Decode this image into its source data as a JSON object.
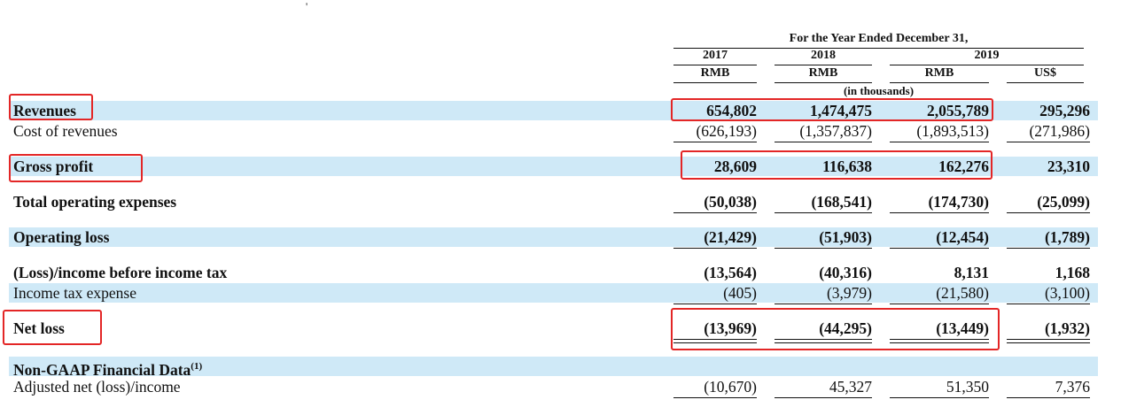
{
  "header": {
    "period": "For the Year Ended December 31,",
    "years": [
      "2017",
      "2018",
      "2019"
    ],
    "currencies": [
      "RMB",
      "RMB",
      "RMB",
      "US$"
    ],
    "unit": "(in thousands)"
  },
  "rows": {
    "revenues": {
      "label": "Revenues",
      "values": [
        "654,802",
        "1,474,475",
        "2,055,789",
        "295,296"
      ]
    },
    "cost": {
      "label": "Cost of revenues",
      "values": [
        "(626,193)",
        "(1,357,837)",
        "(1,893,513)",
        "(271,986)"
      ]
    },
    "gross": {
      "label": "Gross profit",
      "values": [
        "28,609",
        "116,638",
        "162,276",
        "23,310"
      ]
    },
    "opex": {
      "label": "Total operating expenses",
      "values": [
        "(50,038)",
        "(168,541)",
        "(174,730)",
        "(25,099)"
      ]
    },
    "oploss": {
      "label": "Operating loss",
      "values": [
        "(21,429)",
        "(51,903)",
        "(12,454)",
        "(1,789)"
      ]
    },
    "pretax": {
      "label": "(Loss)/income before income tax",
      "values": [
        "(13,564)",
        "(40,316)",
        "8,131",
        "1,168"
      ]
    },
    "tax": {
      "label": "Income tax expense",
      "values": [
        "(405)",
        "(3,979)",
        "(21,580)",
        "(3,100)"
      ]
    },
    "netloss": {
      "label": "Net loss",
      "values": [
        "(13,969)",
        "(44,295)",
        "(13,449)",
        "(1,932)"
      ]
    },
    "nongaap": {
      "label": "Non-GAAP Financial Data",
      "footnote": "(1)"
    },
    "adjusted": {
      "label": "Adjusted net (loss)/income",
      "values": [
        "(10,670)",
        "45,327",
        "51,350",
        "7,376"
      ]
    }
  },
  "highlight_color": "#e32626",
  "band_color": "#cfe9f7"
}
